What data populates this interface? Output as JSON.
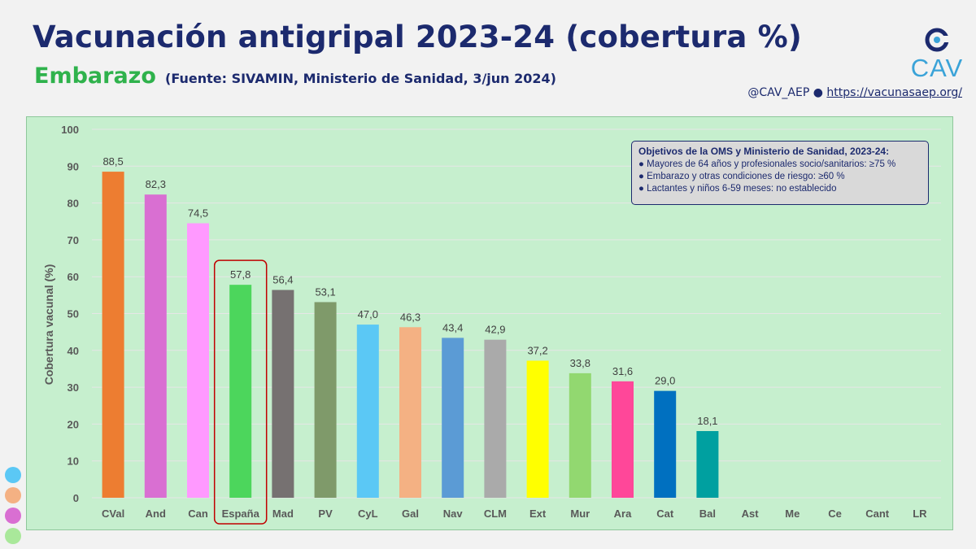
{
  "header": {
    "title": "Vacunación antigripal 2023-24 (cobertura %)",
    "subtitle": "Embarazo",
    "source": "(Fuente: SIVAMIN, Ministerio de Sanidad, 3/jun 2024)",
    "credit_handle": "@CAV_AEP ●",
    "credit_link": "https://vacunasaep.org/",
    "logo_text": "CAV"
  },
  "legend_box": {
    "title": "Objetivos de la OMS y Ministerio de Sanidad, 2023-24:",
    "items": [
      "● Mayores de 64 años y profesionales socio/sanitarios: ≥75 %",
      "● Embarazo y otras condiciones de riesgo: ≥60 %",
      "● Lactantes y niños 6-59 meses: no establecido"
    ]
  },
  "chart_data": {
    "type": "bar",
    "title": "",
    "xlabel": "",
    "ylabel": "Cobertura vacunal (%)",
    "ylim": [
      0,
      100
    ],
    "yticks": [
      0,
      10,
      20,
      30,
      40,
      50,
      60,
      70,
      80,
      90,
      100
    ],
    "grid": true,
    "categories": [
      "CVal",
      "And",
      "Can",
      "España",
      "Mad",
      "PV",
      "CyL",
      "Gal",
      "Nav",
      "CLM",
      "Ext",
      "Mur",
      "Ara",
      "Cat",
      "Bal",
      "Ast",
      "Me",
      "Ce",
      "Cant",
      "LR"
    ],
    "values": [
      88.5,
      82.3,
      74.5,
      57.8,
      56.4,
      53.1,
      47.0,
      46.3,
      43.4,
      42.9,
      37.2,
      33.8,
      31.6,
      29.0,
      18.1,
      null,
      null,
      null,
      null,
      null
    ],
    "value_labels": [
      "88,5",
      "82,3",
      "74,5",
      "57,8",
      "56,4",
      "53,1",
      "47,0",
      "46,3",
      "43,4",
      "42,9",
      "37,2",
      "33,8",
      "31,6",
      "29,0",
      "18,1",
      "",
      "",
      "",
      "",
      ""
    ],
    "colors": [
      "#ed7d31",
      "#d96fd2",
      "#ff99ff",
      "#4cd65c",
      "#767171",
      "#7f9a6a",
      "#5bc8f5",
      "#f4b183",
      "#5b9bd5",
      "#aaaaaa",
      "#ffff00",
      "#92d870",
      "#ff4799",
      "#0070c0",
      "#00a0a0",
      "#c6efce",
      "#c6efce",
      "#c6efce",
      "#c6efce",
      "#c6efce"
    ],
    "highlight": "España",
    "highlight_color": "#c00000"
  },
  "side_dots": [
    "#5bc8f5",
    "#f4b183",
    "#d96fd2",
    "#a9e89a"
  ]
}
